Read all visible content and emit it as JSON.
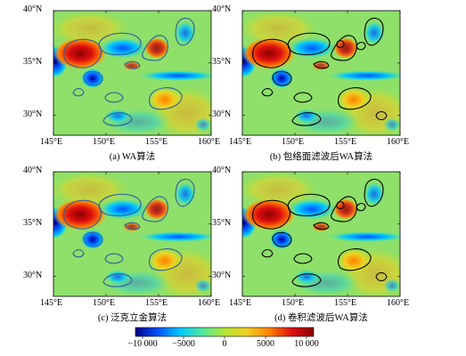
{
  "panels": [
    {
      "id": "a",
      "caption": "(a) WA算法",
      "contour_color": "#2c5aa0"
    },
    {
      "id": "b",
      "caption": "(b) 包络面滤波后WA算法",
      "contour_color": "#000000"
    },
    {
      "id": "c",
      "caption": "(c) 泛克立金算法",
      "contour_color": "#2c5aa0"
    },
    {
      "id": "d",
      "caption": "(d) 卷积滤波后WA算法",
      "contour_color": "#000000"
    }
  ],
  "y_ticks": [
    "40°N",
    "35°N",
    "30°N"
  ],
  "x_ticks": [
    "145°E",
    "150°E",
    "155°E",
    "160°E"
  ],
  "colorbar": {
    "ticks": [
      "−10 000",
      "−5000",
      "0",
      "5000",
      "10 000"
    ],
    "colors": [
      "#00008c",
      "#0050ff",
      "#00c8ff",
      "#50e8a0",
      "#b4e632",
      "#f0d020",
      "#ff8000",
      "#e01010",
      "#8c0000"
    ]
  }
}
